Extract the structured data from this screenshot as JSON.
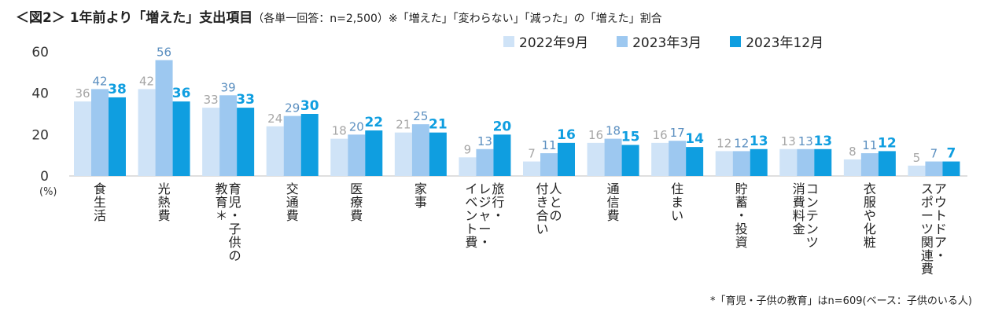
{
  "title": {
    "main": "＜図2＞ 1年前より「増えた」支出項目",
    "sub": "（各単一回答：n=2,500）※「増えた」「変わらない」「減った」の「増えた」割合"
  },
  "footnote": "*「育児・子供の教育」はn=609(ベース：子供のいる人)",
  "chart_data": {
    "type": "bar",
    "ylabel": "(%)",
    "ylim": [
      0,
      60
    ],
    "yticks": [
      0,
      20,
      40,
      60
    ],
    "grid": false,
    "legend_position": "top-right",
    "categories": [
      [
        "食生活"
      ],
      [
        "光熱費"
      ],
      [
        "育児・子供の",
        "教育＊"
      ],
      [
        "交通費"
      ],
      [
        "医療費"
      ],
      [
        "家事"
      ],
      [
        "旅行・",
        "レジャー・",
        "イベント費"
      ],
      [
        "人との",
        "付き合い"
      ],
      [
        "通信費"
      ],
      [
        "住まい"
      ],
      [
        "貯蓄・投資"
      ],
      [
        "コンテンツ",
        "消費料金"
      ],
      [
        "衣服や化粧"
      ],
      [
        "アウトドア・",
        "スポーツ関連費"
      ]
    ],
    "series": [
      {
        "name": "2022年9月",
        "color": "#cfe3f7",
        "label_color": "#a6a6a6",
        "values": [
          36,
          42,
          33,
          24,
          18,
          21,
          9,
          7,
          16,
          16,
          12,
          13,
          8,
          5
        ]
      },
      {
        "name": "2023年3月",
        "color": "#9dc8f0",
        "label_color": "#5b8fc0",
        "values": [
          42,
          56,
          39,
          29,
          20,
          25,
          13,
          11,
          18,
          17,
          12,
          13,
          11,
          7
        ]
      },
      {
        "name": "2023年12月",
        "color": "#0f9ee0",
        "label_color": "#0f9ee0",
        "values": [
          38,
          36,
          33,
          30,
          22,
          21,
          20,
          16,
          15,
          14,
          13,
          13,
          12,
          7
        ]
      }
    ]
  }
}
